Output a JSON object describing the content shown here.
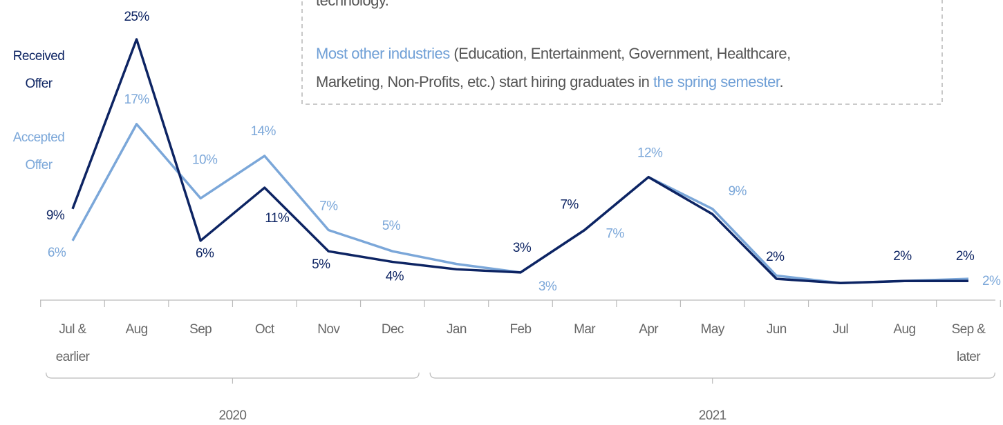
{
  "chart_data": {
    "type": "line",
    "categories": [
      "Jul & earlier",
      "Aug",
      "Sep",
      "Oct",
      "Nov",
      "Dec",
      "Jan",
      "Feb",
      "Mar",
      "Apr",
      "May",
      "Jun",
      "Jul",
      "Aug",
      "Sep & later"
    ],
    "groups": [
      {
        "label": "2020",
        "from": 0,
        "to": 5
      },
      {
        "label": "2021",
        "from": 6,
        "to": 14
      }
    ],
    "ylim": [
      0,
      25
    ],
    "series": [
      {
        "name": "Received Offer",
        "color": "#0d2463",
        "values": [
          9,
          25,
          6,
          11,
          5,
          4,
          3.3,
          3,
          7,
          12,
          8.5,
          2.4,
          2,
          2.2,
          2.2
        ],
        "value_labels": [
          "9%",
          "25%",
          "6%",
          "11%",
          "5%",
          "4%",
          null,
          "3%",
          "7%",
          null,
          null,
          "2%",
          null,
          "2%",
          "2%"
        ]
      },
      {
        "name": "Accepted Offer",
        "color": "#7ba7d9",
        "values": [
          6,
          17,
          10,
          14,
          7,
          5,
          3.8,
          3,
          7,
          12,
          9,
          2.7,
          2,
          2.2,
          2.4
        ],
        "value_labels": [
          "6%",
          "17%",
          "10%",
          "14%",
          "7%",
          "5%",
          null,
          "3%",
          "7%",
          "12%",
          "9%",
          null,
          null,
          null,
          "2%"
        ]
      }
    ],
    "annotation": {
      "top_line": "technology.",
      "lines": [
        [
          {
            "text": "Most other industries",
            "highlight": true
          },
          {
            "text": " (Education, Entertainment, Government, Healthcare,",
            "highlight": false
          }
        ],
        [
          {
            "text": "Marketing, Non-Profits, etc.) start hiring graduates in ",
            "highlight": false
          },
          {
            "text": "the spring semester",
            "highlight": true
          },
          {
            "text": ".",
            "highlight": false
          }
        ]
      ]
    }
  }
}
